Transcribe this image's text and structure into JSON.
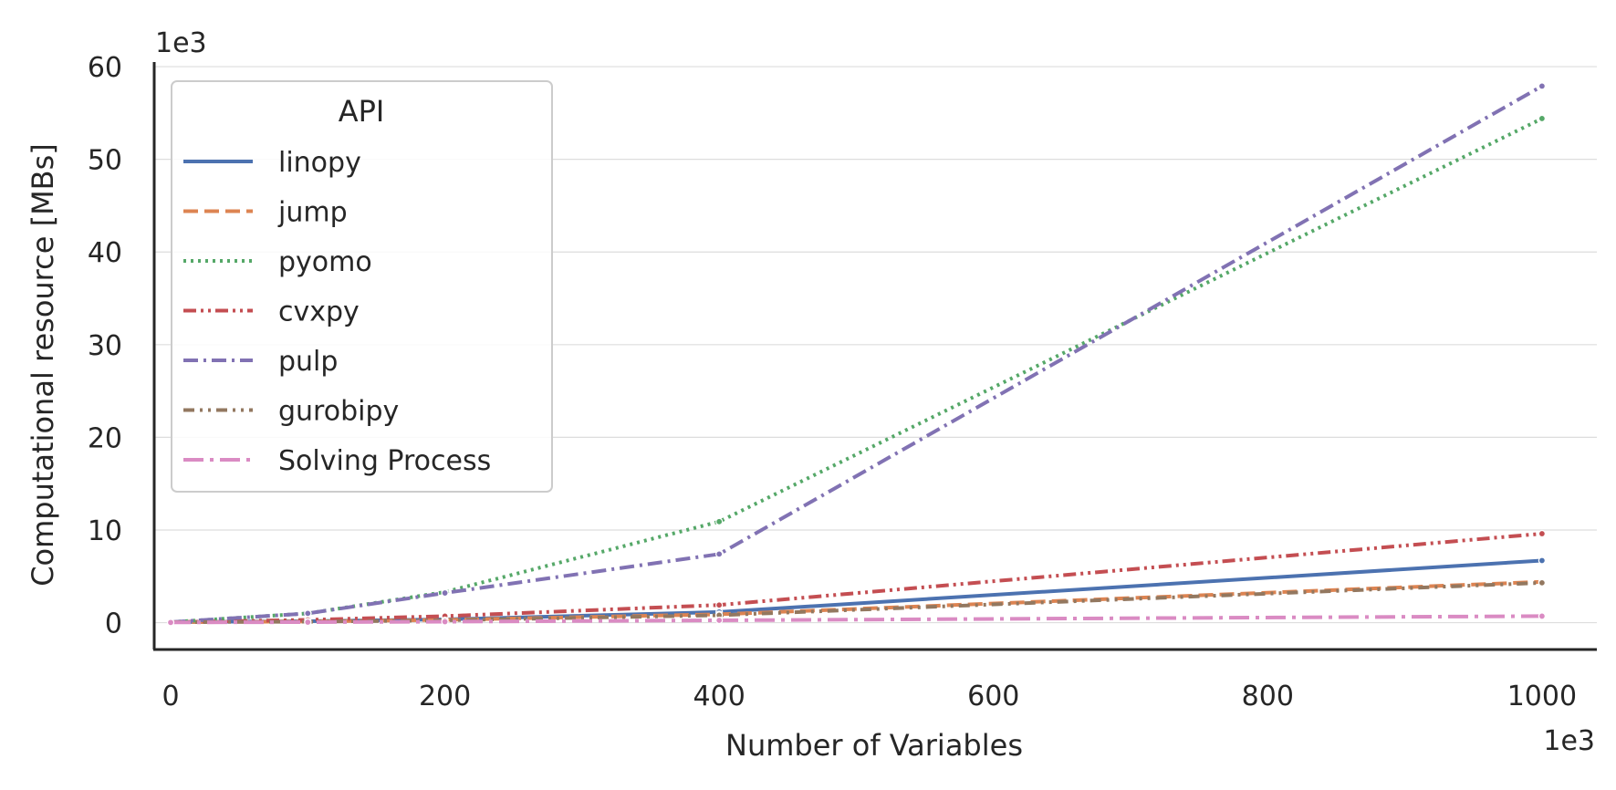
{
  "chart_data": {
    "type": "line",
    "title": "",
    "xlabel": "Number of Variables",
    "ylabel": "Computational resource [MBs]",
    "x_offset_label": "1e3",
    "y_offset_label": "1e3",
    "x_ticks": [
      "0",
      "200",
      "400",
      "600",
      "800",
      "1000"
    ],
    "y_ticks": [
      "0",
      "10",
      "20",
      "30",
      "40",
      "50",
      "60"
    ],
    "xlim": [
      -12,
      1040
    ],
    "ylim": [
      -2.9,
      60.5
    ],
    "grid": "horizontal",
    "legend": {
      "title": "API",
      "placement": "top-left"
    },
    "x": [
      0,
      100,
      200,
      400,
      1000
    ],
    "series": [
      {
        "name": "linopy",
        "color": "#4c72b0",
        "dash": "solid",
        "values": [
          0.05,
          0.15,
          0.35,
          1.15,
          6.7
        ]
      },
      {
        "name": "jump",
        "color": "#dd8452",
        "dash": "dashed",
        "values": [
          0.05,
          0.12,
          0.3,
          0.9,
          4.4
        ]
      },
      {
        "name": "pyomo",
        "color": "#55a868",
        "dash": "dotted",
        "values": [
          0.05,
          1.0,
          3.3,
          10.9,
          54.4
        ]
      },
      {
        "name": "cvxpy",
        "color": "#c44e52",
        "dash": "dashdotdot",
        "values": [
          0.05,
          0.3,
          0.7,
          1.9,
          9.6
        ]
      },
      {
        "name": "pulp",
        "color": "#8172b3",
        "dash": "dashdot",
        "values": [
          0.05,
          1.0,
          3.2,
          7.4,
          57.9
        ]
      },
      {
        "name": "gurobipy",
        "color": "#937860",
        "dash": "dashdotdot2",
        "values": [
          0.05,
          0.1,
          0.25,
          0.8,
          4.3
        ]
      },
      {
        "name": "Solving Process",
        "color": "#da8bc3",
        "dash": "longdashdot",
        "values": [
          0.02,
          0.05,
          0.1,
          0.25,
          0.7
        ]
      }
    ]
  }
}
